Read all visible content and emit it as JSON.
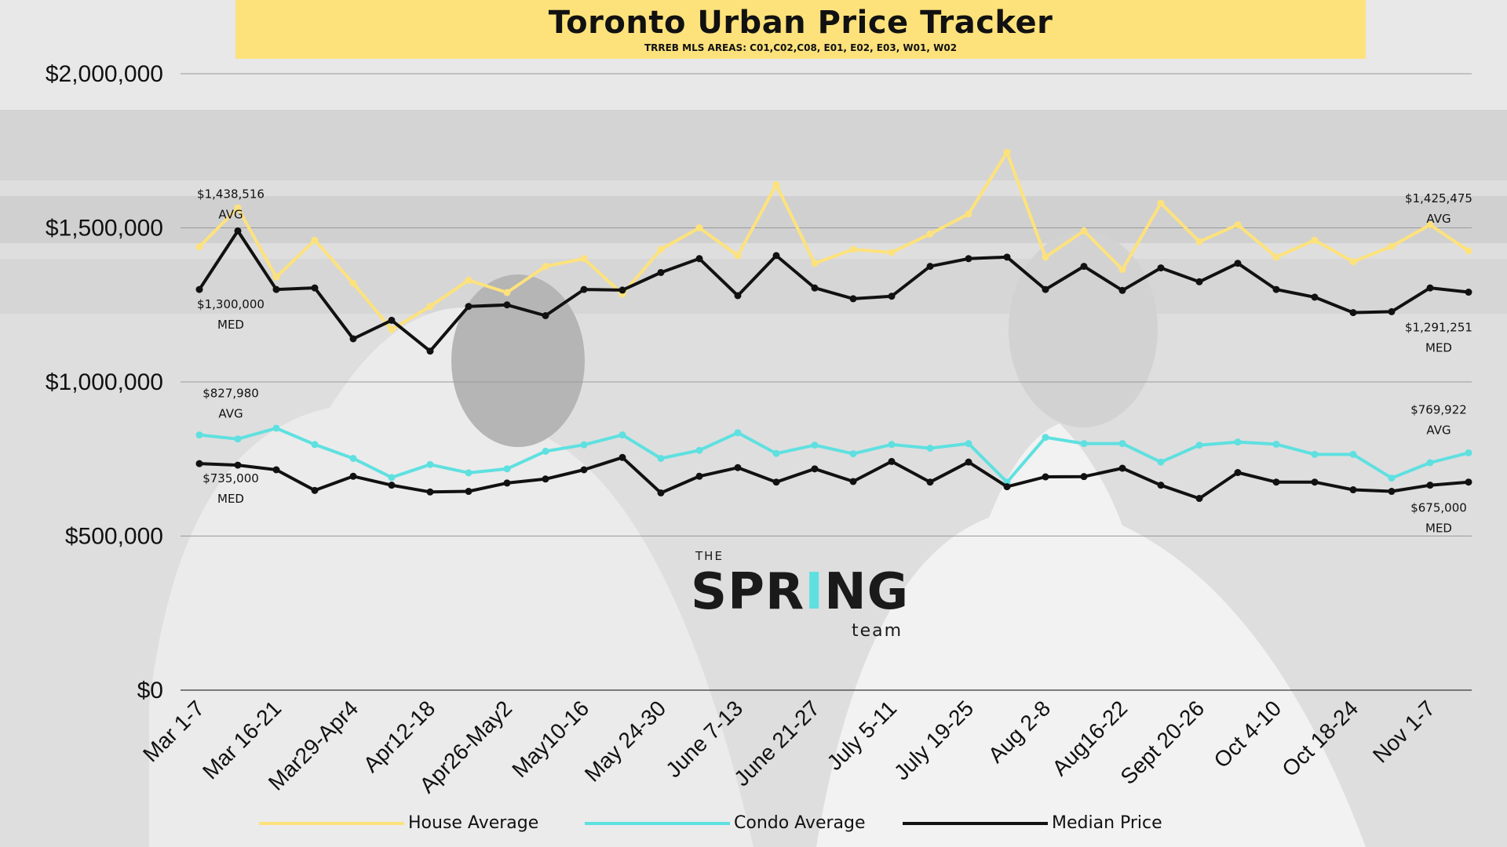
{
  "title": "Toronto Urban Price Tracker",
  "subtitle": "TRREB MLS AREAS: C01,C02,C08, E01, E02, E03, W01, W02",
  "logo": {
    "top": "THE",
    "main": "SPRING",
    "sub": "team",
    "accent_color": "#5fe0e0"
  },
  "colors": {
    "house": "#fde27c",
    "condo": "#5fe0e0",
    "median": "#111111",
    "banner": "#fde27c",
    "background": "#dcdcdc"
  },
  "chart_data": {
    "type": "line",
    "title": "Toronto Urban Price Tracker",
    "subtitle": "TRREB MLS AREAS: C01,C02,C08, E01, E02, E03, W01, W02",
    "xlabel": "",
    "ylabel": "",
    "ylim": [
      0,
      2000000
    ],
    "y_ticks": [
      "$0",
      "$500,000",
      "$1,000,000",
      "$1,500,000",
      "$2,000,000"
    ],
    "grid": true,
    "legend_position": "bottom",
    "x_tick_labels": [
      "Mar 1-7",
      "Mar 16-21",
      "Mar29-Apr4",
      "Apr12-18",
      "Apr26-May2",
      "May10-16",
      "May 24-30",
      "June 7-13",
      "June 21-27",
      "July 5-11",
      "July 19-25",
      "Aug 2-8",
      "Aug16-22",
      "Sept 20-26",
      "Oct 4-10",
      "Oct 18-24",
      "Nov 1-7"
    ],
    "series": [
      {
        "name": "House Average",
        "color": "#fde27c",
        "values": [
          1438516,
          1565000,
          1340000,
          1460000,
          1320000,
          1170000,
          1245000,
          1330000,
          1290000,
          1375000,
          1400000,
          1285000,
          1430000,
          1500000,
          1410000,
          1640000,
          1385000,
          1430000,
          1420000,
          1480000,
          1545000,
          1745000,
          1405000,
          1490000,
          1365000,
          1580000,
          1455000,
          1510000,
          1405000,
          1460000,
          1390000,
          1440000,
          1510000,
          1425475
        ]
      },
      {
        "name": "Median Price",
        "color": "#111111",
        "values": [
          1300000,
          1490000,
          1300000,
          1305000,
          1140000,
          1200000,
          1100000,
          1245000,
          1250000,
          1215000,
          1300000,
          1298000,
          1355000,
          1400000,
          1280000,
          1410000,
          1305000,
          1270000,
          1278000,
          1375000,
          1400000,
          1405000,
          1300000,
          1375000,
          1297000,
          1370000,
          1325000,
          1385000,
          1300000,
          1275000,
          1225000,
          1228000,
          1305000,
          1291251
        ]
      },
      {
        "name": "Condo Average",
        "color": "#5fe0e0",
        "values": [
          827980,
          815000,
          850000,
          797000,
          752000,
          690000,
          732000,
          705000,
          718000,
          775000,
          796000,
          828000,
          752000,
          778000,
          835000,
          768000,
          795000,
          767000,
          797000,
          785000,
          800000,
          675000,
          820000,
          800000,
          800000,
          740000,
          795000,
          805000,
          798000,
          765000,
          765000,
          688000,
          738000,
          769922
        ]
      },
      {
        "name": "Median Price (Condo)",
        "color": "#111111",
        "values": [
          735000,
          730000,
          715000,
          648000,
          694000,
          665000,
          643000,
          645000,
          672000,
          685000,
          715000,
          755000,
          640000,
          694000,
          722000,
          675000,
          718000,
          677000,
          742000,
          675000,
          740000,
          660000,
          692000,
          693000,
          720000,
          665000,
          622000,
          706000,
          675000,
          675000,
          650000,
          645000,
          665000,
          675000
        ]
      }
    ],
    "annotations": [
      {
        "value": "$1,438,516",
        "tag": "AVG"
      },
      {
        "value": "$1,300,000",
        "tag": "MED"
      },
      {
        "value": "$827,980",
        "tag": "AVG"
      },
      {
        "value": "$735,000",
        "tag": "MED"
      },
      {
        "value": "$1,425,475",
        "tag": "AVG"
      },
      {
        "value": "$1,291,251",
        "tag": "MED"
      },
      {
        "value": "$769,922",
        "tag": "AVG"
      },
      {
        "value": "$675,000",
        "tag": "MED"
      }
    ]
  },
  "legend": [
    {
      "label": "House Average",
      "color": "#fde27c"
    },
    {
      "label": "Condo Average",
      "color": "#5fe0e0"
    },
    {
      "label": "Median Price",
      "color": "#111111"
    }
  ]
}
